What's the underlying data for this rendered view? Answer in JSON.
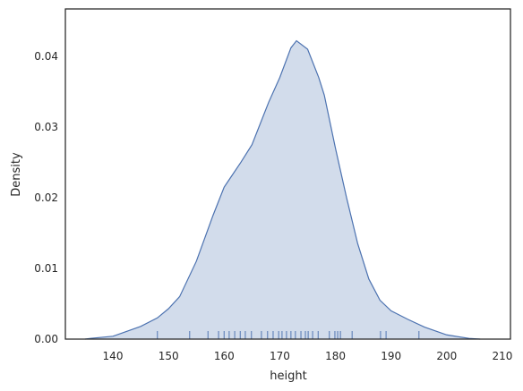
{
  "chart_data": {
    "type": "kde",
    "xlabel": "height",
    "ylabel": "Density",
    "x": [
      135,
      136,
      140,
      145,
      148,
      150,
      152,
      155,
      158,
      160,
      163,
      165,
      168,
      170,
      172,
      173,
      175,
      177,
      178,
      180,
      182,
      184,
      186,
      188,
      190,
      193,
      196,
      200,
      204,
      206
    ],
    "values": [
      0,
      0.0001,
      0.0004,
      0.0018,
      0.003,
      0.0043,
      0.006,
      0.011,
      0.0175,
      0.0215,
      0.025,
      0.0275,
      0.0335,
      0.037,
      0.0412,
      0.0422,
      0.041,
      0.037,
      0.0345,
      0.027,
      0.02,
      0.0135,
      0.0085,
      0.0055,
      0.004,
      0.0028,
      0.0017,
      0.0006,
      0.0001,
      0
    ],
    "rug": [
      148.0,
      153.8,
      157.1,
      159.0,
      160.0,
      160.9,
      161.9,
      162.9,
      163.8,
      164.9,
      166.7,
      167.8,
      168.8,
      169.8,
      170.4,
      171.2,
      172.0,
      172.8,
      173.8,
      174.6,
      175.1,
      175.9,
      176.9,
      178.9,
      179.9,
      180.4,
      180.9,
      183.0,
      188.1,
      189.1,
      195.0
    ],
    "color": "#4c72b0",
    "xlim": [
      131.47,
      211.45
    ],
    "ylim": [
      0,
      0.0467
    ],
    "xticks": [
      140,
      150,
      160,
      170,
      180,
      190,
      200,
      210
    ],
    "yticks": [
      {
        "value": 0,
        "label": "0.00"
      },
      {
        "value": 0.01,
        "label": "0.01"
      },
      {
        "value": 0.02,
        "label": "0.02"
      },
      {
        "value": 0.03,
        "label": "0.03"
      },
      {
        "value": 0.04,
        "label": "0.04"
      }
    ]
  }
}
